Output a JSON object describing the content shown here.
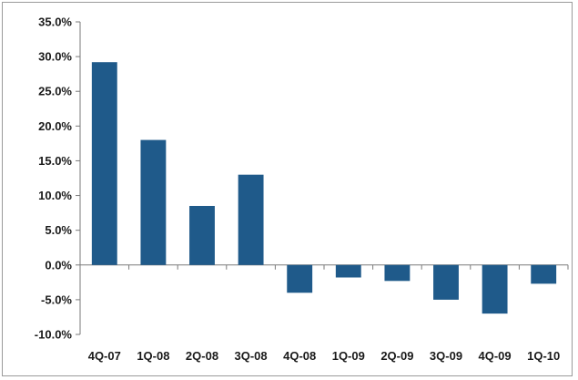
{
  "chart_data": {
    "type": "bar",
    "title": "",
    "xlabel": "",
    "ylabel": "",
    "categories": [
      "4Q-07",
      "1Q-08",
      "2Q-08",
      "3Q-08",
      "4Q-08",
      "1Q-09",
      "2Q-09",
      "3Q-09",
      "4Q-09",
      "1Q-10"
    ],
    "values": [
      29.2,
      18.0,
      8.5,
      13.0,
      -4.0,
      -1.8,
      -2.3,
      -5.0,
      -7.0,
      -2.7
    ],
    "ylim": [
      -10,
      35
    ],
    "yticks": [
      -10,
      -5,
      0,
      5,
      10,
      15,
      20,
      25,
      30,
      35
    ],
    "ytick_labels": [
      "-10.0%",
      "-5.0%",
      "0.0%",
      "5.0%",
      "10.0%",
      "15.0%",
      "20.0%",
      "25.0%",
      "30.0%",
      "35.0%"
    ],
    "grid": false,
    "legend": "none",
    "bar_color": "#1f5a8a"
  }
}
